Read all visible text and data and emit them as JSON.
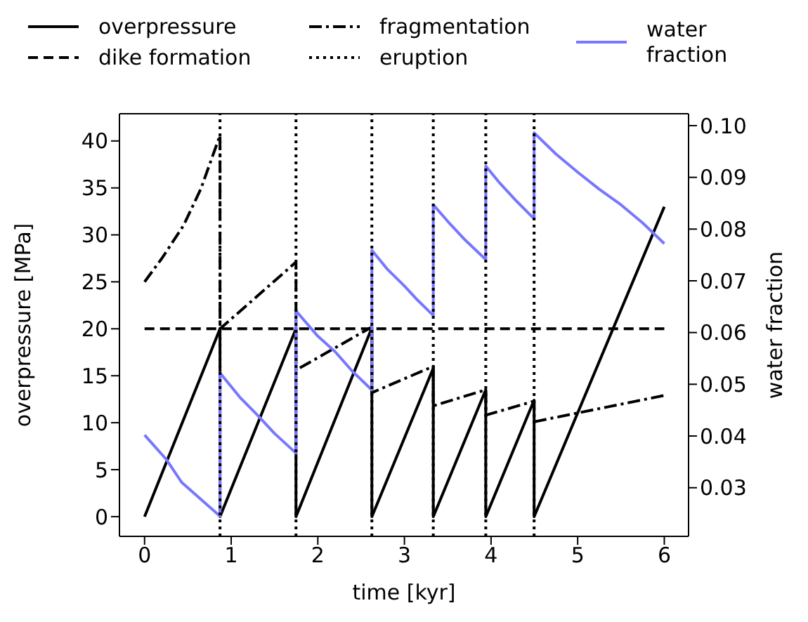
{
  "chart_data": {
    "type": "line",
    "xlabel": "time [kyr]",
    "ylabel": "overpressure [MPa]",
    "y2label": "water fraction",
    "xlim": [
      -0.29,
      6.28
    ],
    "xticks": [
      0,
      1,
      2,
      3,
      4,
      5,
      6
    ],
    "ylim": [
      -2.1,
      42.9
    ],
    "yticks": [
      0,
      5,
      10,
      15,
      20,
      25,
      30,
      35,
      40
    ],
    "y2lim": [
      0.0206,
      0.1023
    ],
    "y2ticks": [
      0.03,
      0.04,
      0.05,
      0.06,
      0.07,
      0.08,
      0.09,
      {
        "value": 0.1,
        "label": "0.10"
      }
    ],
    "legend": "top",
    "grid": false,
    "ref_lines": [
      {
        "axis": "x",
        "value": 0.871,
        "label": "eruption",
        "color": "#000000",
        "line_style": "dotted"
      },
      {
        "axis": "x",
        "value": 1.748,
        "color": "#000000",
        "line_style": "dotted"
      },
      {
        "axis": "x",
        "value": 2.624,
        "color": "#000000",
        "line_style": "dotted"
      },
      {
        "axis": "x",
        "value": 3.333,
        "color": "#000000",
        "line_style": "dotted"
      },
      {
        "axis": "x",
        "value": 3.939,
        "color": "#000000",
        "line_style": "dotted"
      },
      {
        "axis": "x",
        "value": 4.497,
        "color": "#000000",
        "line_style": "dotted"
      }
    ],
    "series": [
      {
        "name": "overpressure",
        "color": "#000000",
        "line_style": "solid",
        "x": [
          0,
          0.871,
          0.871,
          1.748,
          1.748,
          2.624,
          2.624,
          3.333,
          3.333,
          3.939,
          3.939,
          4.497,
          4.497,
          6
        ],
        "values": [
          0,
          20,
          0,
          20,
          0,
          20.1,
          0,
          15.8,
          0,
          13.5,
          0,
          12.4,
          0,
          33
        ]
      },
      {
        "name": "dike formation",
        "color": "#000000",
        "line_style": "dashed",
        "x": [
          0,
          6
        ],
        "values": [
          20,
          20
        ]
      },
      {
        "name": "fragmentation",
        "color": "#000000",
        "line_style": "dashdot",
        "x": [
          0,
          0.2,
          0.45,
          0.65,
          0.871,
          0.871,
          1.748,
          1.748,
          2.624,
          2.624,
          3.333,
          3.333,
          3.939,
          3.939,
          4.497,
          4.497,
          6
        ],
        "values": [
          25,
          27.5,
          31,
          34.9,
          40.6,
          20,
          27.1,
          15.6,
          20.2,
          13.2,
          16,
          11.8,
          13.5,
          10.8,
          12.3,
          10.1,
          12.9
        ]
      },
      {
        "name": "water fraction",
        "axis": "y2",
        "color": "#7777ff",
        "line_style": "solid",
        "x": [
          0,
          0.25,
          0.43,
          0.6,
          0.871,
          0.871,
          1.1,
          1.3,
          1.5,
          1.748,
          1.748,
          2.0,
          2.2,
          2.4,
          2.624,
          2.624,
          2.8,
          3.0,
          3.15,
          3.333,
          3.333,
          3.5,
          3.7,
          3.939,
          3.939,
          4.1,
          4.3,
          4.497,
          4.497,
          4.75,
          5.0,
          5.25,
          5.5,
          5.75,
          6
        ],
        "values": [
          0.0402,
          0.0355,
          0.031,
          0.0285,
          0.0245,
          0.0522,
          0.0475,
          0.0441,
          0.0405,
          0.0367,
          0.0642,
          0.0593,
          0.0563,
          0.0525,
          0.0489,
          0.0759,
          0.0723,
          0.069,
          0.0663,
          0.0633,
          0.0847,
          0.0815,
          0.0779,
          0.0741,
          0.0922,
          0.0889,
          0.0853,
          0.082,
          0.0986,
          0.0945,
          0.091,
          0.0877,
          0.0847,
          0.0812,
          0.0772
        ]
      }
    ]
  }
}
